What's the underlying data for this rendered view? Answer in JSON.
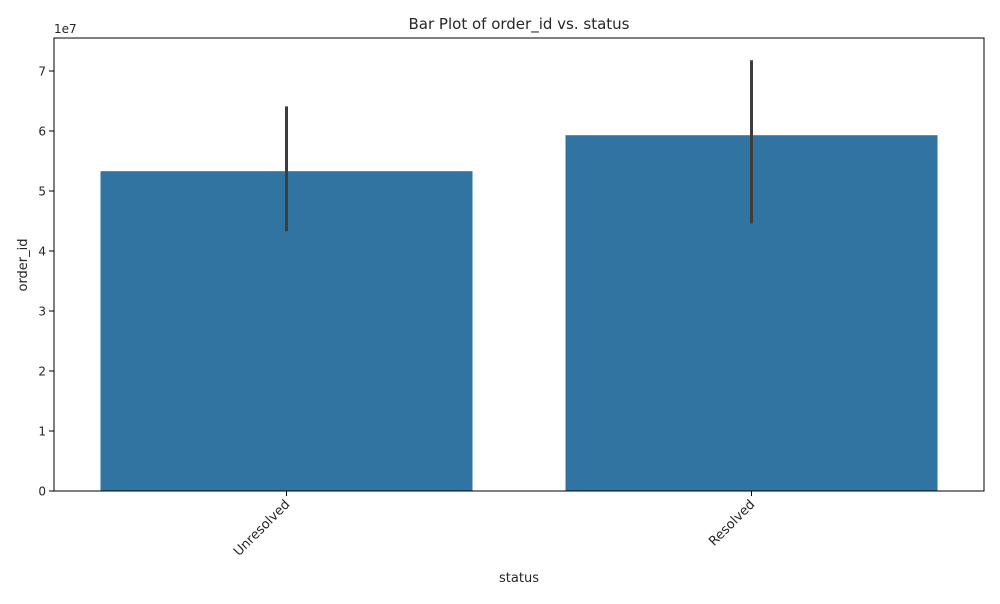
{
  "chart_data": {
    "type": "bar",
    "title": "Bar Plot of order_id vs. status",
    "xlabel": "status",
    "ylabel": "order_id",
    "y_offset_label": "1e7",
    "categories": [
      "Unresolved",
      "Resolved"
    ],
    "values": [
      53300000,
      59300000
    ],
    "error_bars": [
      {
        "low": 43300000,
        "high": 64100000
      },
      {
        "low": 44600000,
        "high": 71800000
      }
    ],
    "ylim": [
      0,
      75500000
    ],
    "y_ticks": [
      0,
      10000000,
      20000000,
      30000000,
      40000000,
      50000000,
      60000000,
      70000000
    ],
    "y_tick_labels": [
      "0",
      "1",
      "2",
      "3",
      "4",
      "5",
      "6",
      "7"
    ],
    "grid": false,
    "bar_color": "#3274a1",
    "error_color": "#3d3d3d",
    "x_tick_rotation_deg": 45
  }
}
